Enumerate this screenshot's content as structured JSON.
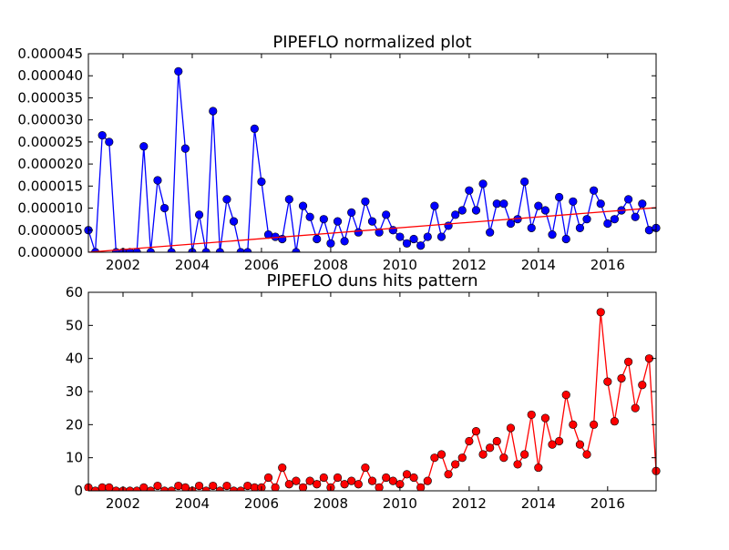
{
  "chart_data": [
    {
      "type": "line",
      "title": "PIPEFLO normalized plot",
      "x": [
        2001.0,
        2001.2,
        2001.4,
        2001.6,
        2001.8,
        2002.0,
        2002.2,
        2002.4,
        2002.6,
        2002.8,
        2003.0,
        2003.2,
        2003.4,
        2003.6,
        2003.8,
        2004.0,
        2004.2,
        2004.4,
        2004.6,
        2004.8,
        2005.0,
        2005.2,
        2005.4,
        2005.6,
        2005.8,
        2006.0,
        2006.2,
        2006.4,
        2006.6,
        2006.8,
        2007.0,
        2007.2,
        2007.4,
        2007.6,
        2007.8,
        2008.0,
        2008.2,
        2008.4,
        2008.6,
        2008.8,
        2009.0,
        2009.2,
        2009.4,
        2009.6,
        2009.8,
        2010.0,
        2010.2,
        2010.4,
        2010.6,
        2010.8,
        2011.0,
        2011.2,
        2011.4,
        2011.6,
        2011.8,
        2012.0,
        2012.2,
        2012.4,
        2012.6,
        2012.8,
        2013.0,
        2013.2,
        2013.4,
        2013.6,
        2013.8,
        2014.0,
        2014.2,
        2014.4,
        2014.6,
        2014.8,
        2015.0,
        2015.2,
        2015.4,
        2015.6,
        2015.8,
        2016.0,
        2016.2,
        2016.4,
        2016.6,
        2016.8,
        2017.0,
        2017.2,
        2017.4
      ],
      "series": [
        {
          "color": "#0000ff",
          "marker": true,
          "values": [
            5e-06,
            0,
            2.65e-05,
            2.5e-05,
            0,
            0,
            0,
            0,
            2.4e-05,
            0,
            1.63e-05,
            1e-05,
            0,
            4.1e-05,
            2.35e-05,
            0,
            8.5e-06,
            0,
            3.2e-05,
            0,
            1.2e-05,
            7e-06,
            0,
            0,
            2.8e-05,
            1.6e-05,
            4e-06,
            3.5e-06,
            3e-06,
            1.2e-05,
            0,
            1.05e-05,
            8e-06,
            3e-06,
            7.5e-06,
            2e-06,
            7e-06,
            2.5e-06,
            9e-06,
            4.5e-06,
            1.15e-05,
            7e-06,
            4.5e-06,
            8.5e-06,
            5e-06,
            3.5e-06,
            2e-06,
            3e-06,
            1.5e-06,
            3.5e-06,
            1.05e-05,
            3.5e-06,
            6e-06,
            8.5e-06,
            9.5e-06,
            1.4e-05,
            9.5e-06,
            1.55e-05,
            4.5e-06,
            1.1e-05,
            1.1e-05,
            6.5e-06,
            7.5e-06,
            1.6e-05,
            5.5e-06,
            1.05e-05,
            9.5e-06,
            4e-06,
            1.25e-05,
            3e-06,
            1.15e-05,
            5.5e-06,
            7.5e-06,
            1.4e-05,
            1.1e-05,
            6.5e-06,
            7.5e-06,
            9.5e-06,
            1.2e-05,
            8e-06,
            1.1e-05,
            5e-06,
            5.5e-06
          ]
        },
        {
          "color": "#ff0000",
          "marker": false,
          "x": [
            2001.0,
            2017.4
          ],
          "values": [
            0,
            1.01e-05
          ]
        }
      ],
      "xlim": [
        2001.0,
        2017.4
      ],
      "xticks": [
        2002,
        2004,
        2006,
        2008,
        2010,
        2012,
        2014,
        2016
      ],
      "ylim": [
        0,
        4.5e-05
      ],
      "yticks": [
        {
          "value": 0,
          "label": "0.000000"
        },
        {
          "value": 5e-06,
          "label": "0.000005"
        },
        {
          "value": 1e-05,
          "label": "0.000010"
        },
        {
          "value": 1.5e-05,
          "label": "0.000015"
        },
        {
          "value": 2e-05,
          "label": "0.000020"
        },
        {
          "value": 2.5e-05,
          "label": "0.000025"
        },
        {
          "value": 3e-05,
          "label": "0.000030"
        },
        {
          "value": 3.5e-05,
          "label": "0.000035"
        },
        {
          "value": 4e-05,
          "label": "0.000040"
        },
        {
          "value": 4.5e-05,
          "label": "0.000045"
        }
      ]
    },
    {
      "type": "line",
      "title": "PIPEFLO duns hits pattern",
      "x": [
        2001.0,
        2001.2,
        2001.4,
        2001.6,
        2001.8,
        2002.0,
        2002.2,
        2002.4,
        2002.6,
        2002.8,
        2003.0,
        2003.2,
        2003.4,
        2003.6,
        2003.8,
        2004.0,
        2004.2,
        2004.4,
        2004.6,
        2004.8,
        2005.0,
        2005.2,
        2005.4,
        2005.6,
        2005.8,
        2006.0,
        2006.2,
        2006.4,
        2006.6,
        2006.8,
        2007.0,
        2007.2,
        2007.4,
        2007.6,
        2007.8,
        2008.0,
        2008.2,
        2008.4,
        2008.6,
        2008.8,
        2009.0,
        2009.2,
        2009.4,
        2009.6,
        2009.8,
        2010.0,
        2010.2,
        2010.4,
        2010.6,
        2010.8,
        2011.0,
        2011.2,
        2011.4,
        2011.6,
        2011.8,
        2012.0,
        2012.2,
        2012.4,
        2012.6,
        2012.8,
        2013.0,
        2013.2,
        2013.4,
        2013.6,
        2013.8,
        2014.0,
        2014.2,
        2014.4,
        2014.6,
        2014.8,
        2015.0,
        2015.2,
        2015.4,
        2015.6,
        2015.8,
        2016.0,
        2016.2,
        2016.4,
        2016.6,
        2016.8,
        2017.0,
        2017.2,
        2017.4
      ],
      "series": [
        {
          "color": "#ff0000",
          "marker": true,
          "values": [
            1,
            0,
            1,
            1,
            0,
            0,
            0,
            0,
            1,
            0,
            1.5,
            0,
            0,
            1.5,
            1,
            0,
            1.5,
            0,
            1.5,
            0,
            1.5,
            0,
            0,
            1.5,
            1,
            1,
            4,
            1,
            7,
            2,
            3,
            1,
            3,
            2,
            4,
            1,
            4,
            2,
            3,
            2,
            7,
            3,
            1,
            4,
            3,
            2,
            5,
            4,
            1,
            3,
            10,
            11,
            5,
            8,
            10,
            15,
            18,
            11,
            13,
            15,
            10,
            19,
            8,
            11,
            23,
            7,
            22,
            14,
            15,
            29,
            20,
            14,
            11,
            20,
            54,
            33,
            21,
            34,
            39,
            25,
            32,
            40,
            6
          ]
        }
      ],
      "xlim": [
        2001.0,
        2017.4
      ],
      "xticks": [
        2002,
        2004,
        2006,
        2008,
        2010,
        2012,
        2014,
        2016
      ],
      "ylim": [
        0,
        60
      ],
      "yticks": [
        0,
        10,
        20,
        30,
        40,
        50,
        60
      ]
    }
  ]
}
